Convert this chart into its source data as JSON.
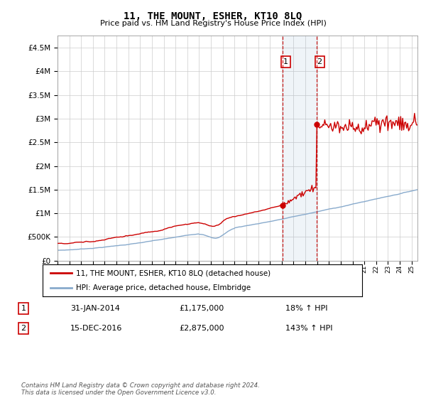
{
  "title": "11, THE MOUNT, ESHER, KT10 8LQ",
  "subtitle": "Price paid vs. HM Land Registry's House Price Index (HPI)",
  "ylim": [
    0,
    4750000
  ],
  "yticks": [
    0,
    500000,
    1000000,
    1500000,
    2000000,
    2500000,
    3000000,
    3500000,
    4000000,
    4500000
  ],
  "ytick_labels": [
    "£0",
    "£500K",
    "£1M",
    "£1.5M",
    "£2M",
    "£2.5M",
    "£3M",
    "£3.5M",
    "£4M",
    "£4.5M"
  ],
  "legend_price_label": "11, THE MOUNT, ESHER, KT10 8LQ (detached house)",
  "legend_hpi_label": "HPI: Average price, detached house, Elmbridge",
  "transaction1_label": "1",
  "transaction1_date": "31-JAN-2014",
  "transaction1_price": "£1,175,000",
  "transaction1_hpi": "18% ↑ HPI",
  "transaction2_label": "2",
  "transaction2_date": "15-DEC-2016",
  "transaction2_price": "£2,875,000",
  "transaction2_hpi": "143% ↑ HPI",
  "footer": "Contains HM Land Registry data © Crown copyright and database right 2024.\nThis data is licensed under the Open Government Licence v3.0.",
  "price_color": "#cc0000",
  "hpi_color": "#88aacc",
  "transaction1_x": 2014.083,
  "transaction1_y": 1175000,
  "transaction2_x": 2016.958,
  "transaction2_y": 2875000,
  "highlight_xmin": 2014.083,
  "highlight_xmax": 2016.958,
  "xmin": 1995,
  "xmax": 2025.5
}
